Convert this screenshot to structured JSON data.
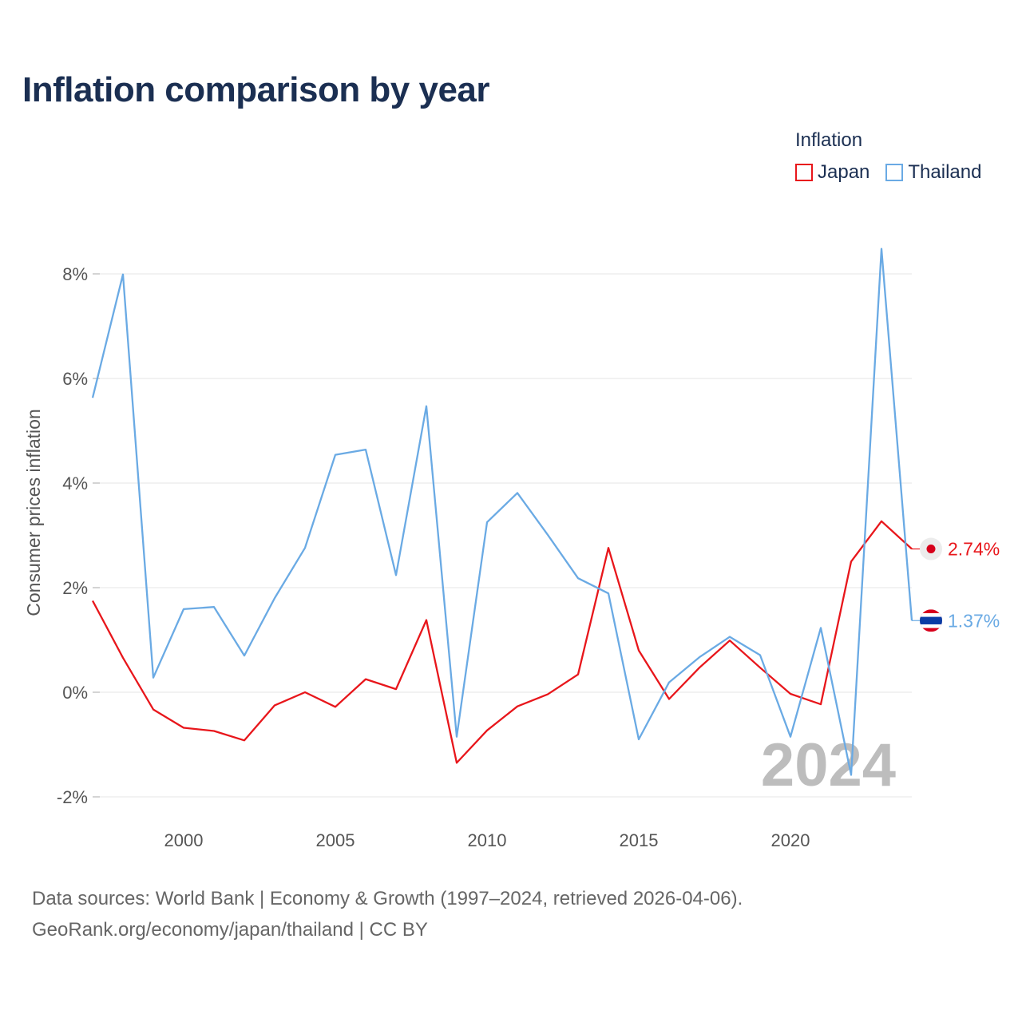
{
  "chart_data": {
    "type": "line",
    "title": "Inflation comparison by year",
    "legend_title": "Inflation",
    "ylabel": "Consumer prices inflation",
    "xlabel": "",
    "xlim": [
      1997,
      2024
    ],
    "ylim": [
      -2,
      8
    ],
    "y_ticks": [
      8,
      6,
      4,
      2,
      0,
      -2
    ],
    "y_tick_labels": [
      "8%",
      "6%",
      "4%",
      "2%",
      "0%",
      "-2%"
    ],
    "x_ticks": [
      2000,
      2005,
      2010,
      2015,
      2020
    ],
    "x_tick_labels": [
      "2000",
      "2005",
      "2010",
      "2015",
      "2020"
    ],
    "x": [
      1997,
      1998,
      1999,
      2000,
      2001,
      2002,
      2003,
      2004,
      2005,
      2006,
      2007,
      2008,
      2009,
      2010,
      2011,
      2012,
      2013,
      2014,
      2015,
      2016,
      2017,
      2018,
      2019,
      2020,
      2021,
      2022,
      2023,
      2024
    ],
    "series": [
      {
        "name": "Japan",
        "color": "#e8161b",
        "values": [
          1.75,
          0.66,
          -0.33,
          -0.68,
          -0.74,
          -0.92,
          -0.25,
          0.0,
          -0.28,
          0.25,
          0.06,
          1.38,
          -1.35,
          -0.73,
          -0.27,
          -0.04,
          0.34,
          2.76,
          0.8,
          -0.13,
          0.47,
          0.99,
          0.47,
          -0.03,
          -0.23,
          2.5,
          3.27,
          2.74
        ],
        "end_label": "2.74%",
        "flag": "japan-flag-icon"
      },
      {
        "name": "Thailand",
        "color": "#6aaae4",
        "values": [
          5.63,
          7.99,
          0.28,
          1.59,
          1.63,
          0.7,
          1.8,
          2.76,
          4.54,
          4.64,
          2.24,
          5.47,
          -0.85,
          3.25,
          3.81,
          3.01,
          2.18,
          1.89,
          -0.9,
          0.19,
          0.67,
          1.06,
          0.71,
          -0.85,
          1.23,
          -1.58,
          8.48,
          1.37
        ],
        "end_label": "1.37%",
        "flag": "thailand-flag-icon"
      }
    ],
    "year_overlay": "2024",
    "grid": true,
    "legend_position": "top-right"
  },
  "footer": {
    "line1": "Data sources: World Bank | Economy & Growth (1997–2024, retrieved 2026-04-06).",
    "line2": "GeoRank.org/economy/japan/thailand | CC BY"
  }
}
